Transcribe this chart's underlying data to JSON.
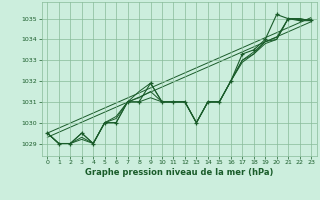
{
  "title": "Graphe pression niveau de la mer (hPa)",
  "bg_color": "#cceedd",
  "grid_color": "#88bb99",
  "line_color": "#1a5c2a",
  "xlim": [
    -0.5,
    23.5
  ],
  "ylim": [
    1028.4,
    1035.8
  ],
  "yticks": [
    1029,
    1030,
    1031,
    1032,
    1033,
    1034,
    1035
  ],
  "xticks": [
    0,
    1,
    2,
    3,
    4,
    5,
    6,
    7,
    8,
    9,
    10,
    11,
    12,
    13,
    14,
    15,
    16,
    17,
    18,
    19,
    20,
    21,
    22,
    23
  ],
  "trend_line1": [
    [
      0,
      23
    ],
    [
      1029.5,
      1035.05
    ]
  ],
  "trend_line2": [
    [
      0,
      23
    ],
    [
      1029.3,
      1034.85
    ]
  ],
  "series1": [
    1029.5,
    1029.0,
    1029.0,
    1029.5,
    1029.0,
    1030.0,
    1030.3,
    1031.0,
    1031.5,
    1031.9,
    1031.0,
    1031.0,
    1031.0,
    1030.0,
    1031.0,
    1031.0,
    1032.0,
    1033.0,
    1033.3,
    1033.9,
    1034.1,
    1035.0,
    1035.0,
    1034.9
  ],
  "series2": [
    1029.5,
    1029.0,
    1029.0,
    1029.3,
    1029.0,
    1030.0,
    1030.2,
    1031.0,
    1031.2,
    1031.5,
    1031.0,
    1031.0,
    1031.0,
    1030.0,
    1031.0,
    1031.0,
    1032.0,
    1033.0,
    1033.4,
    1033.9,
    1034.0,
    1035.0,
    1035.0,
    1034.9
  ],
  "series3": [
    1029.5,
    1029.0,
    1029.0,
    1029.2,
    1029.0,
    1030.0,
    1030.0,
    1031.0,
    1031.0,
    1031.2,
    1031.0,
    1031.0,
    1031.0,
    1030.0,
    1031.0,
    1031.0,
    1032.0,
    1032.9,
    1033.3,
    1033.8,
    1034.0,
    1035.0,
    1034.9,
    1034.9
  ],
  "main_series": [
    1029.5,
    1029.0,
    1029.0,
    1029.5,
    1029.0,
    1030.0,
    1030.0,
    1031.0,
    1031.0,
    1031.9,
    1031.0,
    1031.0,
    1031.0,
    1030.0,
    1031.0,
    1031.0,
    1032.0,
    1033.3,
    1033.5,
    1034.0,
    1035.2,
    1035.0,
    1034.95,
    1034.95
  ]
}
